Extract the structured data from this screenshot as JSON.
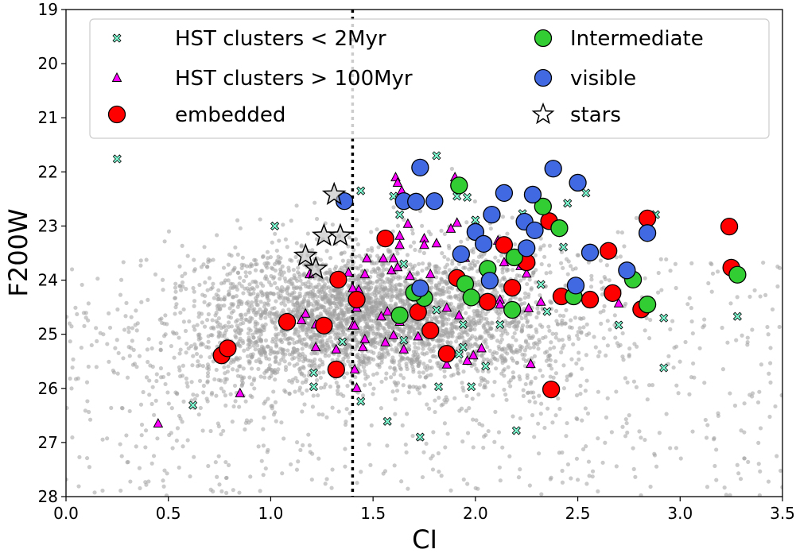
{
  "chart_data": {
    "type": "scatter",
    "xlabel": "CI",
    "ylabel": "F200W",
    "xlim": [
      0.0,
      3.5
    ],
    "ylim": [
      28,
      19
    ],
    "y_inverted": true,
    "xticks": [
      "0.0",
      "0.5",
      "1.0",
      "1.5",
      "2.0",
      "2.5",
      "3.0",
      "3.5"
    ],
    "yticks": [
      "19",
      "20",
      "21",
      "22",
      "23",
      "24",
      "25",
      "26",
      "27",
      "28"
    ],
    "grid": false,
    "legend_placement": "top",
    "vertical_line": {
      "x": 1.4,
      "style": "dotted",
      "color": "#000000"
    },
    "background_points": {
      "color": "#a0a0a0",
      "distribution_center": [
        1.5,
        24.6
      ]
    },
    "series": [
      {
        "name": "HST clusters < 2Myr",
        "marker": "x",
        "color": "#7fffd4",
        "points": [
          [
            0.25,
            21.76
          ],
          [
            1.02,
            23.0
          ],
          [
            1.21,
            25.71
          ],
          [
            1.21,
            25.97
          ],
          [
            0.62,
            26.31
          ],
          [
            1.44,
            22.35
          ],
          [
            1.6,
            22.45
          ],
          [
            1.63,
            22.79
          ],
          [
            1.65,
            23.7
          ],
          [
            1.35,
            25.14
          ],
          [
            1.44,
            26.24
          ],
          [
            1.57,
            26.61
          ],
          [
            1.73,
            26.9
          ],
          [
            1.65,
            25.11
          ],
          [
            1.81,
            21.7
          ],
          [
            1.91,
            22.45
          ],
          [
            1.96,
            22.47
          ],
          [
            2.0,
            22.89
          ],
          [
            2.23,
            22.77
          ],
          [
            2.45,
            22.58
          ],
          [
            2.54,
            22.39
          ],
          [
            2.43,
            23.39
          ],
          [
            2.32,
            24.08
          ],
          [
            1.81,
            24.55
          ],
          [
            2.35,
            24.58
          ],
          [
            1.94,
            24.82
          ],
          [
            2.12,
            24.82
          ],
          [
            2.7,
            24.83
          ],
          [
            2.92,
            24.7
          ],
          [
            3.28,
            24.67
          ],
          [
            1.94,
            25.24
          ],
          [
            1.92,
            25.37
          ],
          [
            2.05,
            25.59
          ],
          [
            2.92,
            25.62
          ],
          [
            1.82,
            25.97
          ],
          [
            1.98,
            25.97
          ],
          [
            2.2,
            26.78
          ],
          [
            2.88,
            22.79
          ]
        ]
      },
      {
        "name": "HST clusters > 100Myr",
        "marker": "triangle",
        "color": "#ff00ff",
        "points": [
          [
            1.61,
            22.1
          ],
          [
            1.62,
            22.2
          ],
          [
            1.64,
            22.35
          ],
          [
            1.67,
            22.96
          ],
          [
            1.63,
            23.18
          ],
          [
            1.63,
            23.35
          ],
          [
            1.75,
            23.23
          ],
          [
            1.75,
            23.35
          ],
          [
            1.47,
            23.6
          ],
          [
            1.55,
            23.6
          ],
          [
            1.6,
            23.6
          ],
          [
            1.59,
            23.82
          ],
          [
            1.62,
            23.76
          ],
          [
            1.46,
            23.89
          ],
          [
            1.68,
            23.92
          ],
          [
            1.38,
            23.86
          ],
          [
            1.19,
            23.89
          ],
          [
            1.43,
            24.18
          ],
          [
            1.42,
            24.51
          ],
          [
            1.54,
            24.67
          ],
          [
            1.57,
            24.58
          ],
          [
            1.63,
            24.77
          ],
          [
            1.17,
            24.62
          ],
          [
            1.15,
            24.74
          ],
          [
            1.22,
            24.82
          ],
          [
            1.4,
            24.84
          ],
          [
            1.41,
            24.84
          ],
          [
            1.46,
            25.09
          ],
          [
            1.45,
            25.24
          ],
          [
            1.56,
            25.15
          ],
          [
            1.6,
            25.02
          ],
          [
            1.72,
            25.04
          ],
          [
            1.65,
            25.28
          ],
          [
            1.22,
            25.24
          ],
          [
            1.32,
            25.28
          ],
          [
            1.41,
            25.65
          ],
          [
            1.42,
            25.99
          ],
          [
            0.85,
            26.09
          ],
          [
            0.45,
            26.65
          ],
          [
            1.4,
            24.15
          ],
          [
            1.9,
            22.1
          ],
          [
            1.91,
            22.94
          ],
          [
            1.88,
            23.05
          ],
          [
            1.81,
            23.32
          ],
          [
            2.11,
            23.27
          ],
          [
            1.95,
            23.59
          ],
          [
            2.14,
            23.67
          ],
          [
            2.22,
            23.74
          ],
          [
            2.25,
            23.88
          ],
          [
            1.78,
            23.89
          ],
          [
            1.86,
            24.51
          ],
          [
            1.92,
            24.65
          ],
          [
            2.12,
            24.36
          ],
          [
            2.12,
            24.45
          ],
          [
            2.26,
            24.52
          ],
          [
            2.32,
            24.4
          ],
          [
            2.7,
            24.43
          ],
          [
            1.99,
            25.39
          ],
          [
            2.03,
            25.26
          ],
          [
            1.96,
            25.49
          ],
          [
            1.86,
            25.56
          ],
          [
            2.27,
            25.55
          ]
        ]
      },
      {
        "name": "embedded",
        "marker": "circle",
        "color": "#ff0000",
        "points": [
          [
            0.76,
            25.39
          ],
          [
            0.79,
            25.26
          ],
          [
            1.08,
            24.77
          ],
          [
            1.26,
            24.84
          ],
          [
            1.32,
            25.65
          ],
          [
            1.33,
            23.99
          ],
          [
            1.42,
            24.36
          ],
          [
            1.56,
            23.23
          ],
          [
            1.72,
            24.59
          ],
          [
            1.78,
            24.93
          ],
          [
            1.86,
            25.36
          ],
          [
            1.91,
            23.96
          ],
          [
            2.06,
            24.4
          ],
          [
            2.14,
            23.35
          ],
          [
            2.18,
            24.14
          ],
          [
            2.25,
            23.67
          ],
          [
            2.36,
            22.91
          ],
          [
            2.37,
            26.02
          ],
          [
            2.42,
            24.3
          ],
          [
            2.56,
            24.36
          ],
          [
            2.65,
            23.46
          ],
          [
            2.67,
            24.24
          ],
          [
            2.81,
            24.54
          ],
          [
            2.84,
            22.86
          ],
          [
            3.24,
            23.01
          ],
          [
            3.25,
            23.77
          ]
        ]
      },
      {
        "name": "Intermediate",
        "marker": "circle",
        "color": "#32cd32",
        "points": [
          [
            1.92,
            22.25
          ],
          [
            2.33,
            22.64
          ],
          [
            2.41,
            23.04
          ],
          [
            2.19,
            23.58
          ],
          [
            2.06,
            23.79
          ],
          [
            1.95,
            24.07
          ],
          [
            1.98,
            24.32
          ],
          [
            1.75,
            24.33
          ],
          [
            1.7,
            24.23
          ],
          [
            1.63,
            24.65
          ],
          [
            2.18,
            24.55
          ],
          [
            2.48,
            24.3
          ],
          [
            2.77,
            23.99
          ],
          [
            2.84,
            24.45
          ],
          [
            3.28,
            23.9
          ]
        ]
      },
      {
        "name": "visible",
        "marker": "circle",
        "color": "#4169e1",
        "points": [
          [
            1.36,
            22.54
          ],
          [
            1.65,
            22.54
          ],
          [
            1.71,
            22.55
          ],
          [
            1.8,
            22.54
          ],
          [
            1.73,
            21.92
          ],
          [
            2.38,
            21.94
          ],
          [
            2.5,
            22.2
          ],
          [
            2.14,
            22.39
          ],
          [
            2.28,
            22.42
          ],
          [
            2.08,
            22.79
          ],
          [
            2.24,
            22.92
          ],
          [
            2.29,
            23.08
          ],
          [
            2.0,
            23.11
          ],
          [
            2.04,
            23.33
          ],
          [
            1.93,
            23.52
          ],
          [
            2.25,
            23.41
          ],
          [
            2.07,
            24.01
          ],
          [
            1.73,
            24.15
          ],
          [
            2.56,
            23.49
          ],
          [
            2.74,
            23.82
          ],
          [
            2.84,
            23.13
          ],
          [
            2.49,
            24.1
          ]
        ]
      },
      {
        "name": "stars",
        "marker": "star",
        "color": "none",
        "points": [
          [
            1.31,
            22.42
          ],
          [
            1.26,
            23.18
          ],
          [
            1.34,
            23.18
          ],
          [
            1.17,
            23.55
          ],
          [
            1.22,
            23.79
          ]
        ]
      }
    ]
  }
}
